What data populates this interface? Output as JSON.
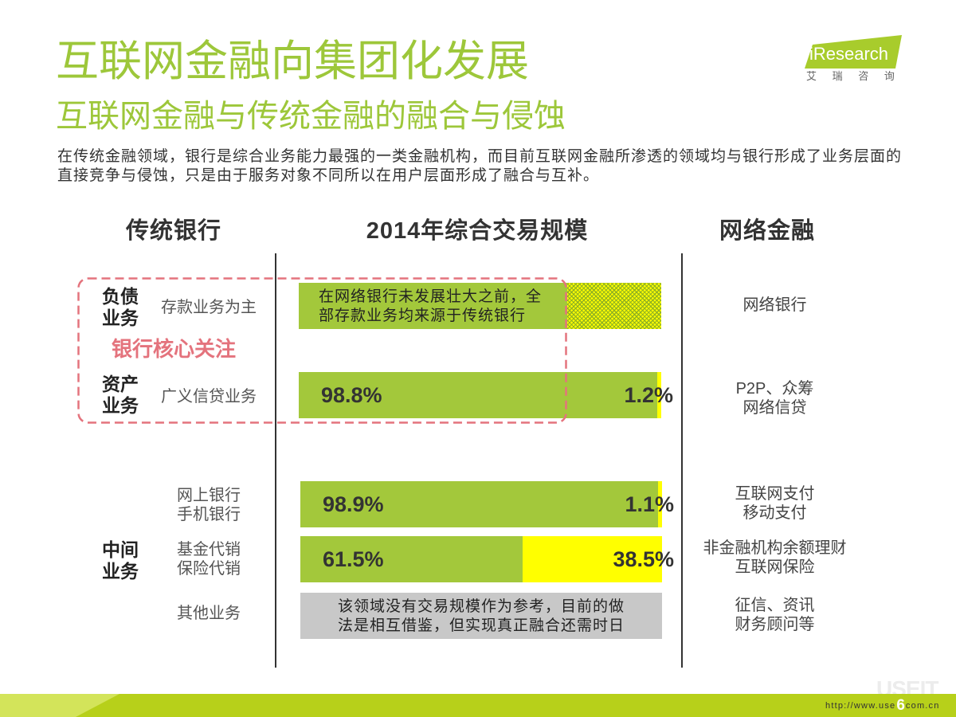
{
  "title": "互联网金融向集团化发展",
  "subtitle": "互联网金融与传统金融的融合与侵蚀",
  "logo": {
    "brand": "iResearch",
    "cn": "艾 瑞 咨 询",
    "color": "#a8cc2c"
  },
  "intro": [
    "在传统金融领域，银行是综合业务能力最强的一类金融机构，而目前互联网金融所渗透的领域均与银行形成了业务层面的",
    "直接竞争与侵蚀，只是由于服务对象不同所以在用户层面形成了融合与互补。"
  ],
  "highlight_label": "银行核心关注",
  "bank_groups": [
    [
      "负债",
      "业务"
    ],
    [
      "资产",
      "业务"
    ],
    [
      "中间",
      "业务"
    ]
  ],
  "internet_finance": [
    [
      "网络银行"
    ],
    [
      "P2P、众筹",
      "网络信贷"
    ],
    [
      "互联网支付",
      "移动支付"
    ],
    [
      "非金融机构余额理财",
      "互联网保险"
    ],
    [
      "征信、资讯",
      "财务顾问等"
    ]
  ],
  "chart_data": {
    "type": "bar",
    "orientation": "horizontal",
    "stacked": true,
    "title": "2014年综合交易规模",
    "xlim": [
      0,
      100
    ],
    "categories": [
      [
        "存款业务为主"
      ],
      [
        "广义信贷业务"
      ],
      [
        "网上银行",
        "手机银行"
      ],
      [
        "基金代销",
        "保险代销"
      ],
      [
        "其他业务"
      ]
    ],
    "series": [
      {
        "name": "传统银行",
        "color": "#a3c83b",
        "values": [
          74,
          98.8,
          98.9,
          61.5,
          null
        ],
        "labels": [
          null,
          "98.8%",
          "98.9%",
          "61.5%",
          null
        ]
      },
      {
        "name": "网络金融",
        "color": "#ffff00",
        "values": [
          26,
          1.2,
          1.1,
          38.5,
          null
        ],
        "labels": [
          null,
          "1.2%",
          "1.1%",
          "38.5%",
          null
        ]
      }
    ],
    "notes": [
      [
        "在网络银行未发展壮大之前，全",
        "部存款业务均来源于传统银行"
      ],
      null,
      null,
      null,
      [
        "该领域没有交易规模作为参考，目前的做",
        "法是相互借鉴，但实现真正融合还需时日"
      ]
    ],
    "no_data_color": "#c8c8c8"
  },
  "colors": {
    "accent": "#9dc73a",
    "highlight": "#e4737d",
    "band": "#b7d01a"
  },
  "footer": {
    "url_prefix": "http://www.use",
    "page_number": "6",
    "url_suffix": "com.cn",
    "watermark": "USEIT"
  }
}
